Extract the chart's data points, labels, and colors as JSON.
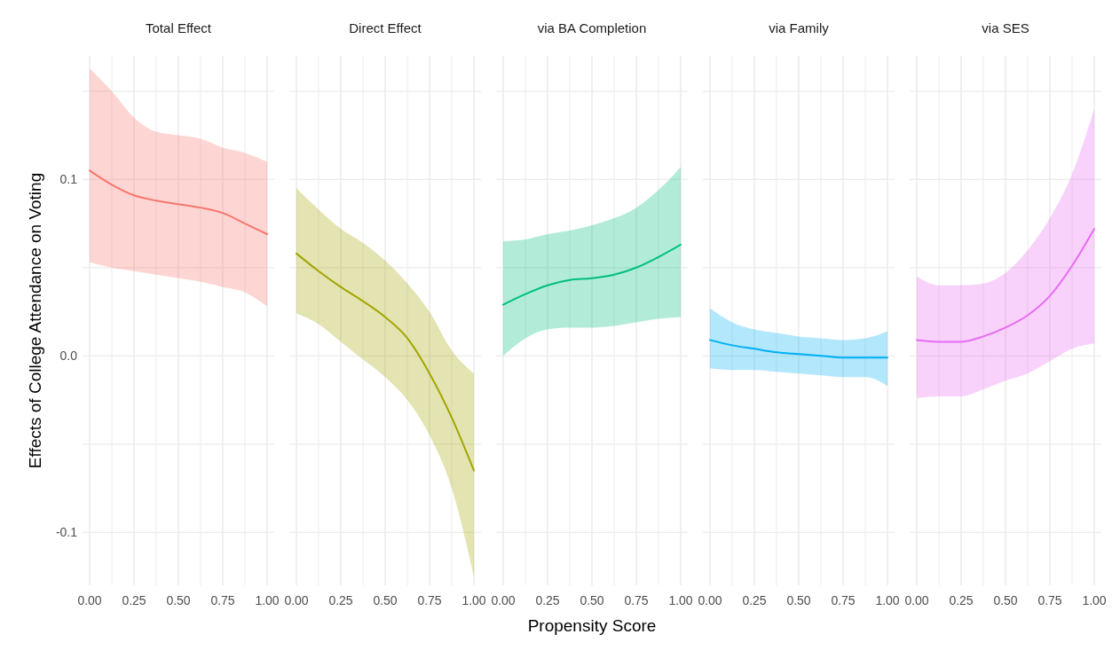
{
  "chart_data": [
    {
      "type": "line",
      "title": "Total Effect",
      "ylabel": "Effects of College Attendance on Voting",
      "x": [
        0,
        0.125,
        0.25,
        0.375,
        0.5,
        0.625,
        0.75,
        0.875,
        1
      ],
      "xlim": [
        0,
        1
      ],
      "ylim": [
        -0.13,
        0.17
      ],
      "xticks": [
        {
          "value": 0,
          "label": "0.00"
        },
        {
          "value": 0.125,
          "label": null
        },
        {
          "value": 0.25,
          "label": "0.25"
        },
        {
          "value": 0.375,
          "label": null
        },
        {
          "value": 0.5,
          "label": "0.50"
        },
        {
          "value": 0.625,
          "label": null
        },
        {
          "value": 0.75,
          "label": "0.75"
        },
        {
          "value": 0.875,
          "label": null
        },
        {
          "value": 1,
          "label": "1.00"
        }
      ],
      "yticks": [
        {
          "value": -0.1,
          "label": "-0.1"
        },
        {
          "value": -0.05,
          "label": null
        },
        {
          "value": 0,
          "label": "0.0"
        },
        {
          "value": 0.05,
          "label": null
        },
        {
          "value": 0.1,
          "label": "0.1"
        },
        {
          "value": 0.15,
          "label": null
        }
      ],
      "grid": true,
      "series": [
        {
          "color": "#f8766d",
          "values": [
            0.105,
            0.097,
            0.091,
            0.088,
            0.086,
            0.084,
            0.081,
            0.075,
            0.069
          ],
          "upper": [
            0.163,
            0.15,
            0.135,
            0.127,
            0.125,
            0.123,
            0.118,
            0.115,
            0.11
          ],
          "lower": [
            0.053,
            0.05,
            0.048,
            0.046,
            0.044,
            0.042,
            0.039,
            0.036,
            0.028
          ]
        }
      ]
    },
    {
      "type": "line",
      "title": "Direct Effect",
      "x": [
        0,
        0.125,
        0.25,
        0.375,
        0.5,
        0.625,
        0.75,
        0.875,
        1
      ],
      "xlim": [
        0,
        1
      ],
      "ylim": [
        -0.13,
        0.17
      ],
      "tick_labels": "x",
      "xticks": [
        {
          "value": 0,
          "label": "0.00"
        },
        {
          "value": 0.125,
          "label": null
        },
        {
          "value": 0.25,
          "label": "0.25"
        },
        {
          "value": 0.375,
          "label": null
        },
        {
          "value": 0.5,
          "label": "0.50"
        },
        {
          "value": 0.625,
          "label": null
        },
        {
          "value": 0.75,
          "label": "0.75"
        },
        {
          "value": 0.875,
          "label": null
        },
        {
          "value": 1,
          "label": "1.00"
        }
      ],
      "yticks": [
        -0.1,
        -0.05,
        0,
        0.05,
        0.1,
        0.15
      ],
      "grid": true,
      "series": [
        {
          "color": "#a3a500",
          "values": [
            0.058,
            0.048,
            0.039,
            0.031,
            0.022,
            0.01,
            -0.01,
            -0.035,
            -0.065
          ],
          "upper": [
            0.095,
            0.083,
            0.072,
            0.064,
            0.054,
            0.041,
            0.025,
            0.003,
            -0.01
          ],
          "lower": [
            0.024,
            0.018,
            0.008,
            -0.002,
            -0.012,
            -0.025,
            -0.045,
            -0.075,
            -0.125
          ]
        }
      ]
    },
    {
      "type": "line",
      "title": "via BA Completion",
      "xlabel": "Propensity Score",
      "x": [
        0,
        0.125,
        0.25,
        0.375,
        0.5,
        0.625,
        0.75,
        0.875,
        1
      ],
      "xlim": [
        0,
        1
      ],
      "ylim": [
        -0.13,
        0.17
      ],
      "tick_labels": "x",
      "xticks": [
        {
          "value": 0,
          "label": "0.00"
        },
        {
          "value": 0.125,
          "label": null
        },
        {
          "value": 0.25,
          "label": "0.25"
        },
        {
          "value": 0.375,
          "label": null
        },
        {
          "value": 0.5,
          "label": "0.50"
        },
        {
          "value": 0.625,
          "label": null
        },
        {
          "value": 0.75,
          "label": "0.75"
        },
        {
          "value": 0.875,
          "label": null
        },
        {
          "value": 1,
          "label": "1.00"
        }
      ],
      "yticks": [
        -0.1,
        -0.05,
        0,
        0.05,
        0.1,
        0.15
      ],
      "grid": true,
      "series": [
        {
          "color": "#00bf7d",
          "values": [
            0.029,
            0.035,
            0.04,
            0.043,
            0.044,
            0.046,
            0.05,
            0.056,
            0.063
          ],
          "upper": [
            0.065,
            0.066,
            0.069,
            0.071,
            0.074,
            0.078,
            0.084,
            0.094,
            0.107
          ],
          "lower": [
            0,
            0.01,
            0.015,
            0.016,
            0.016,
            0.017,
            0.019,
            0.021,
            0.022
          ]
        }
      ]
    },
    {
      "type": "line",
      "title": "via Family",
      "x": [
        0,
        0.125,
        0.25,
        0.375,
        0.5,
        0.625,
        0.75,
        0.875,
        1
      ],
      "xlim": [
        0,
        1
      ],
      "ylim": [
        -0.13,
        0.17
      ],
      "tick_labels": "x",
      "xticks": [
        {
          "value": 0,
          "label": "0.00"
        },
        {
          "value": 0.125,
          "label": null
        },
        {
          "value": 0.25,
          "label": "0.25"
        },
        {
          "value": 0.375,
          "label": null
        },
        {
          "value": 0.5,
          "label": "0.50"
        },
        {
          "value": 0.625,
          "label": null
        },
        {
          "value": 0.75,
          "label": "0.75"
        },
        {
          "value": 0.875,
          "label": null
        },
        {
          "value": 1,
          "label": "1.00"
        }
      ],
      "yticks": [
        -0.1,
        -0.05,
        0,
        0.05,
        0.1,
        0.15
      ],
      "grid": true,
      "series": [
        {
          "color": "#00b0f6",
          "values": [
            0.009,
            0.006,
            0.004,
            0.002,
            0.001,
            0,
            -0.001,
            -0.001,
            -0.001
          ],
          "upper": [
            0.027,
            0.019,
            0.015,
            0.013,
            0.011,
            0.01,
            0.009,
            0.01,
            0.014
          ],
          "lower": [
            -0.007,
            -0.008,
            -0.008,
            -0.009,
            -0.01,
            -0.011,
            -0.012,
            -0.012,
            -0.017
          ]
        }
      ]
    },
    {
      "type": "line",
      "title": "via SES",
      "x": [
        0,
        0.125,
        0.25,
        0.375,
        0.5,
        0.625,
        0.75,
        0.875,
        1
      ],
      "xlim": [
        0,
        1
      ],
      "ylim": [
        -0.13,
        0.17
      ],
      "tick_labels": "x",
      "xticks": [
        {
          "value": 0,
          "label": "0.00"
        },
        {
          "value": 0.125,
          "label": null
        },
        {
          "value": 0.25,
          "label": "0.25"
        },
        {
          "value": 0.375,
          "label": null
        },
        {
          "value": 0.5,
          "label": "0.50"
        },
        {
          "value": 0.625,
          "label": null
        },
        {
          "value": 0.75,
          "label": "0.75"
        },
        {
          "value": 0.875,
          "label": null
        },
        {
          "value": 1,
          "label": "1.00"
        }
      ],
      "yticks": [
        -0.1,
        -0.05,
        0,
        0.05,
        0.1,
        0.15
      ],
      "grid": true,
      "series": [
        {
          "color": "#e76bf3",
          "values": [
            0.009,
            0.008,
            0.008,
            0.011,
            0.016,
            0.023,
            0.034,
            0.051,
            0.072
          ],
          "upper": [
            0.045,
            0.04,
            0.04,
            0.041,
            0.047,
            0.06,
            0.078,
            0.103,
            0.14
          ],
          "lower": [
            -0.024,
            -0.023,
            -0.023,
            -0.019,
            -0.014,
            -0.01,
            -0.003,
            0.004,
            0.007
          ]
        }
      ]
    }
  ]
}
